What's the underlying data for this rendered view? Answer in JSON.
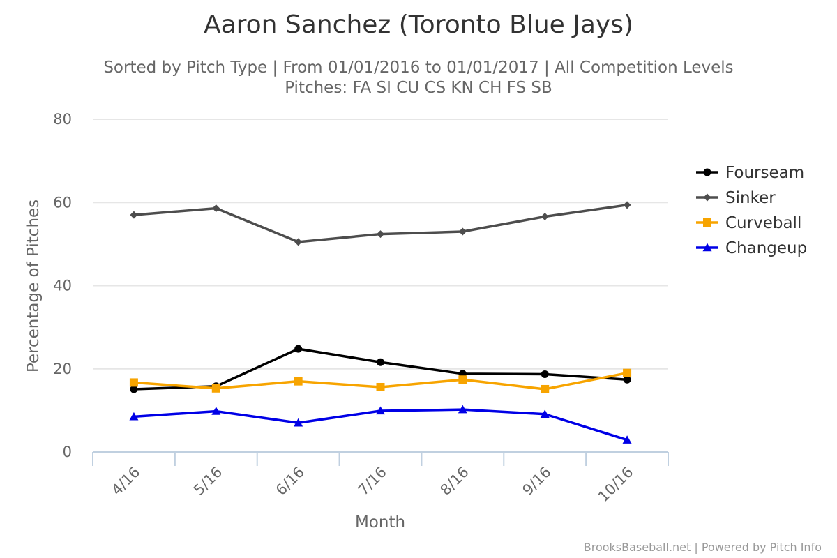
{
  "chart_data": {
    "type": "line",
    "title": "Aaron Sanchez (Toronto Blue Jays)",
    "subtitle_lines": [
      "Sorted by Pitch Type | From 01/01/2016 to 01/01/2017 | All Competition Levels",
      "Pitches: FA SI CU CS KN CH FS SB"
    ],
    "xlabel": "Month",
    "ylabel": "Percentage of Pitches",
    "categories": [
      "4/16",
      "5/16",
      "6/16",
      "7/16",
      "8/16",
      "9/16",
      "10/16"
    ],
    "ylim": [
      0,
      80
    ],
    "yticks": [
      0,
      20,
      40,
      60,
      80
    ],
    "grid": true,
    "legend_position": "right",
    "series": [
      {
        "name": "Fourseam",
        "color": "#000000",
        "marker": "circle",
        "values": [
          15.1,
          15.8,
          24.8,
          21.6,
          18.8,
          18.7,
          17.4
        ]
      },
      {
        "name": "Sinker",
        "color": "#4d4d4d",
        "marker": "diamond",
        "values": [
          57.0,
          58.6,
          50.5,
          52.4,
          53.0,
          56.6,
          59.4
        ]
      },
      {
        "name": "Curveball",
        "color": "#f7a400",
        "marker": "square",
        "values": [
          16.7,
          15.3,
          17.0,
          15.6,
          17.4,
          15.1,
          19.0
        ]
      },
      {
        "name": "Changeup",
        "color": "#0000e6",
        "marker": "triangle",
        "values": [
          8.5,
          9.8,
          7.0,
          9.9,
          10.2,
          9.1,
          2.9
        ]
      }
    ]
  },
  "credits": "BrooksBaseball.net | Powered by Pitch Info"
}
